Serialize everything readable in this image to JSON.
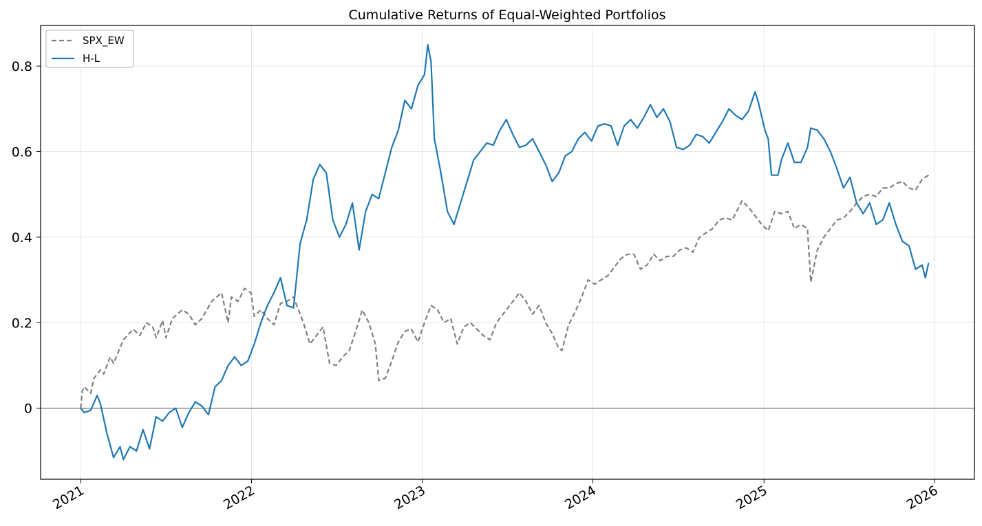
{
  "chart_data": {
    "type": "line",
    "title": "Cumulative Returns of Equal-Weighted Portfolios",
    "xlabel": "",
    "ylabel": "",
    "xlim": [
      "2020-10-07",
      "2026-03-27"
    ],
    "ylim": [
      -0.166,
      0.895
    ],
    "x_ticks": [
      "2021",
      "2022",
      "2023",
      "2024",
      "2025",
      "2026"
    ],
    "y_ticks": [
      0,
      0.2,
      0.4,
      0.6,
      0.8
    ],
    "y_tick_labels": [
      "0",
      "0.2",
      "0.4",
      "0.6",
      "0.8"
    ],
    "grid": true,
    "zero_line": true,
    "legend_position": "top-left",
    "series": [
      {
        "name": "SPX_EW",
        "style": "dashed",
        "color": "#808080",
        "points": [
          [
            "2021-01-01",
            0.0
          ],
          [
            "2021-01-04",
            0.04
          ],
          [
            "2021-01-08",
            0.05
          ],
          [
            "2021-01-22",
            0.035
          ],
          [
            "2021-01-29",
            0.07
          ],
          [
            "2021-02-12",
            0.09
          ],
          [
            "2021-02-19",
            0.08
          ],
          [
            "2021-03-05",
            0.12
          ],
          [
            "2021-03-12",
            0.105
          ],
          [
            "2021-04-02",
            0.16
          ],
          [
            "2021-04-23",
            0.185
          ],
          [
            "2021-05-07",
            0.17
          ],
          [
            "2021-05-21",
            0.2
          ],
          [
            "2021-06-04",
            0.19
          ],
          [
            "2021-06-11",
            0.165
          ],
          [
            "2021-06-25",
            0.205
          ],
          [
            "2021-07-02",
            0.165
          ],
          [
            "2021-07-16",
            0.21
          ],
          [
            "2021-08-06",
            0.23
          ],
          [
            "2021-08-20",
            0.22
          ],
          [
            "2021-09-03",
            0.195
          ],
          [
            "2021-09-17",
            0.21
          ],
          [
            "2021-10-08",
            0.25
          ],
          [
            "2021-10-29",
            0.27
          ],
          [
            "2021-11-12",
            0.2
          ],
          [
            "2021-11-19",
            0.26
          ],
          [
            "2021-12-03",
            0.25
          ],
          [
            "2021-12-17",
            0.28
          ],
          [
            "2021-12-31",
            0.27
          ],
          [
            "2022-01-07",
            0.215
          ],
          [
            "2022-01-21",
            0.23
          ],
          [
            "2022-02-04",
            0.21
          ],
          [
            "2022-02-18",
            0.195
          ],
          [
            "2022-03-04",
            0.245
          ],
          [
            "2022-03-18",
            0.25
          ],
          [
            "2022-04-01",
            0.26
          ],
          [
            "2022-04-22",
            0.2
          ],
          [
            "2022-05-06",
            0.15
          ],
          [
            "2022-05-20",
            0.17
          ],
          [
            "2022-06-03",
            0.19
          ],
          [
            "2022-06-17",
            0.105
          ],
          [
            "2022-07-01",
            0.1
          ],
          [
            "2022-07-15",
            0.12
          ],
          [
            "2022-07-29",
            0.135
          ],
          [
            "2022-08-12",
            0.18
          ],
          [
            "2022-08-26",
            0.23
          ],
          [
            "2022-09-09",
            0.2
          ],
          [
            "2022-09-23",
            0.15
          ],
          [
            "2022-09-30",
            0.065
          ],
          [
            "2022-10-14",
            0.07
          ],
          [
            "2022-10-28",
            0.11
          ],
          [
            "2022-11-11",
            0.155
          ],
          [
            "2022-11-25",
            0.18
          ],
          [
            "2022-12-09",
            0.185
          ],
          [
            "2022-12-23",
            0.155
          ],
          [
            "2023-01-06",
            0.2
          ],
          [
            "2023-01-20",
            0.24
          ],
          [
            "2023-02-03",
            0.23
          ],
          [
            "2023-02-17",
            0.2
          ],
          [
            "2023-03-03",
            0.21
          ],
          [
            "2023-03-17",
            0.15
          ],
          [
            "2023-03-31",
            0.19
          ],
          [
            "2023-04-14",
            0.2
          ],
          [
            "2023-04-28",
            0.185
          ],
          [
            "2023-05-12",
            0.17
          ],
          [
            "2023-05-26",
            0.16
          ],
          [
            "2023-06-09",
            0.2
          ],
          [
            "2023-06-23",
            0.22
          ],
          [
            "2023-07-07",
            0.24
          ],
          [
            "2023-07-28",
            0.27
          ],
          [
            "2023-08-11",
            0.25
          ],
          [
            "2023-08-25",
            0.22
          ],
          [
            "2023-09-08",
            0.24
          ],
          [
            "2023-09-22",
            0.2
          ],
          [
            "2023-10-06",
            0.175
          ],
          [
            "2023-10-20",
            0.14
          ],
          [
            "2023-10-27",
            0.135
          ],
          [
            "2023-11-10",
            0.195
          ],
          [
            "2023-11-24",
            0.225
          ],
          [
            "2023-12-08",
            0.26
          ],
          [
            "2023-12-22",
            0.3
          ],
          [
            "2024-01-05",
            0.29
          ],
          [
            "2024-01-19",
            0.3
          ],
          [
            "2024-02-02",
            0.31
          ],
          [
            "2024-02-16",
            0.33
          ],
          [
            "2024-03-01",
            0.35
          ],
          [
            "2024-03-15",
            0.36
          ],
          [
            "2024-03-29",
            0.36
          ],
          [
            "2024-04-12",
            0.325
          ],
          [
            "2024-04-26",
            0.335
          ],
          [
            "2024-05-10",
            0.36
          ],
          [
            "2024-05-24",
            0.345
          ],
          [
            "2024-06-07",
            0.355
          ],
          [
            "2024-06-21",
            0.355
          ],
          [
            "2024-07-05",
            0.37
          ],
          [
            "2024-07-19",
            0.375
          ],
          [
            "2024-08-02",
            0.365
          ],
          [
            "2024-08-16",
            0.4
          ],
          [
            "2024-08-30",
            0.41
          ],
          [
            "2024-09-13",
            0.42
          ],
          [
            "2024-09-27",
            0.44
          ],
          [
            "2024-10-11",
            0.445
          ],
          [
            "2024-10-25",
            0.44
          ],
          [
            "2024-11-08",
            0.47
          ],
          [
            "2024-11-15",
            0.485
          ],
          [
            "2024-11-29",
            0.47
          ],
          [
            "2024-12-13",
            0.45
          ],
          [
            "2024-12-27",
            0.43
          ],
          [
            "2025-01-10",
            0.415
          ],
          [
            "2025-01-24",
            0.46
          ],
          [
            "2025-02-07",
            0.455
          ],
          [
            "2025-02-21",
            0.46
          ],
          [
            "2025-03-07",
            0.42
          ],
          [
            "2025-03-21",
            0.43
          ],
          [
            "2025-04-04",
            0.42
          ],
          [
            "2025-04-11",
            0.295
          ],
          [
            "2025-04-25",
            0.37
          ],
          [
            "2025-05-09",
            0.4
          ],
          [
            "2025-05-23",
            0.42
          ],
          [
            "2025-06-06",
            0.44
          ],
          [
            "2025-06-20",
            0.445
          ],
          [
            "2025-07-04",
            0.46
          ],
          [
            "2025-07-18",
            0.48
          ],
          [
            "2025-08-01",
            0.495
          ],
          [
            "2025-08-15",
            0.5
          ],
          [
            "2025-08-29",
            0.495
          ],
          [
            "2025-09-12",
            0.515
          ],
          [
            "2025-09-26",
            0.515
          ],
          [
            "2025-10-10",
            0.525
          ],
          [
            "2025-10-24",
            0.53
          ],
          [
            "2025-11-07",
            0.515
          ],
          [
            "2025-11-21",
            0.51
          ],
          [
            "2025-12-05",
            0.535
          ],
          [
            "2025-12-19",
            0.545
          ]
        ]
      },
      {
        "name": "H-L",
        "style": "solid",
        "color": "#1f77b4",
        "points": [
          [
            "2021-01-01",
            0.0
          ],
          [
            "2021-01-08",
            -0.01
          ],
          [
            "2021-01-22",
            -0.005
          ],
          [
            "2021-02-05",
            0.03
          ],
          [
            "2021-02-12",
            0.01
          ],
          [
            "2021-02-26",
            -0.06
          ],
          [
            "2021-03-12",
            -0.115
          ],
          [
            "2021-03-26",
            -0.09
          ],
          [
            "2021-04-02",
            -0.12
          ],
          [
            "2021-04-16",
            -0.09
          ],
          [
            "2021-04-30",
            -0.1
          ],
          [
            "2021-05-14",
            -0.05
          ],
          [
            "2021-05-28",
            -0.095
          ],
          [
            "2021-06-11",
            -0.02
          ],
          [
            "2021-06-25",
            -0.03
          ],
          [
            "2021-07-09",
            -0.01
          ],
          [
            "2021-07-23",
            0.0
          ],
          [
            "2021-08-06",
            -0.045
          ],
          [
            "2021-08-20",
            -0.01
          ],
          [
            "2021-09-03",
            0.015
          ],
          [
            "2021-09-17",
            0.005
          ],
          [
            "2021-10-01",
            -0.015
          ],
          [
            "2021-10-15",
            0.05
          ],
          [
            "2021-10-29",
            0.065
          ],
          [
            "2021-11-12",
            0.1
          ],
          [
            "2021-11-26",
            0.12
          ],
          [
            "2021-12-10",
            0.1
          ],
          [
            "2021-12-24",
            0.11
          ],
          [
            "2022-01-07",
            0.15
          ],
          [
            "2022-01-21",
            0.2
          ],
          [
            "2022-02-04",
            0.24
          ],
          [
            "2022-02-18",
            0.27
          ],
          [
            "2022-03-04",
            0.305
          ],
          [
            "2022-03-18",
            0.24
          ],
          [
            "2022-04-01",
            0.235
          ],
          [
            "2022-04-15",
            0.385
          ],
          [
            "2022-04-29",
            0.44
          ],
          [
            "2022-05-13",
            0.535
          ],
          [
            "2022-05-27",
            0.57
          ],
          [
            "2022-06-10",
            0.55
          ],
          [
            "2022-06-24",
            0.44
          ],
          [
            "2022-07-08",
            0.4
          ],
          [
            "2022-07-22",
            0.43
          ],
          [
            "2022-08-05",
            0.48
          ],
          [
            "2022-08-19",
            0.37
          ],
          [
            "2022-09-02",
            0.46
          ],
          [
            "2022-09-16",
            0.5
          ],
          [
            "2022-09-30",
            0.49
          ],
          [
            "2022-10-14",
            0.55
          ],
          [
            "2022-10-28",
            0.61
          ],
          [
            "2022-11-11",
            0.65
          ],
          [
            "2022-11-25",
            0.72
          ],
          [
            "2022-12-09",
            0.7
          ],
          [
            "2022-12-23",
            0.755
          ],
          [
            "2023-01-06",
            0.78
          ],
          [
            "2023-01-13",
            0.85
          ],
          [
            "2023-01-20",
            0.81
          ],
          [
            "2023-01-27",
            0.63
          ],
          [
            "2023-02-10",
            0.55
          ],
          [
            "2023-02-24",
            0.46
          ],
          [
            "2023-03-10",
            0.43
          ],
          [
            "2023-03-24",
            0.48
          ],
          [
            "2023-04-07",
            0.53
          ],
          [
            "2023-04-21",
            0.58
          ],
          [
            "2023-05-05",
            0.6
          ],
          [
            "2023-05-19",
            0.62
          ],
          [
            "2023-06-02",
            0.615
          ],
          [
            "2023-06-16",
            0.65
          ],
          [
            "2023-06-30",
            0.675
          ],
          [
            "2023-07-14",
            0.64
          ],
          [
            "2023-07-28",
            0.61
          ],
          [
            "2023-08-11",
            0.615
          ],
          [
            "2023-08-25",
            0.63
          ],
          [
            "2023-09-08",
            0.6
          ],
          [
            "2023-09-22",
            0.57
          ],
          [
            "2023-10-06",
            0.53
          ],
          [
            "2023-10-20",
            0.55
          ],
          [
            "2023-11-03",
            0.59
          ],
          [
            "2023-11-17",
            0.6
          ],
          [
            "2023-12-01",
            0.63
          ],
          [
            "2023-12-15",
            0.645
          ],
          [
            "2023-12-29",
            0.625
          ],
          [
            "2024-01-12",
            0.66
          ],
          [
            "2024-01-26",
            0.665
          ],
          [
            "2024-02-09",
            0.66
          ],
          [
            "2024-02-23",
            0.615
          ],
          [
            "2024-03-08",
            0.66
          ],
          [
            "2024-03-22",
            0.675
          ],
          [
            "2024-04-05",
            0.655
          ],
          [
            "2024-04-19",
            0.68
          ],
          [
            "2024-05-03",
            0.71
          ],
          [
            "2024-05-17",
            0.68
          ],
          [
            "2024-05-31",
            0.7
          ],
          [
            "2024-06-14",
            0.67
          ],
          [
            "2024-06-28",
            0.61
          ],
          [
            "2024-07-12",
            0.605
          ],
          [
            "2024-07-26",
            0.615
          ],
          [
            "2024-08-09",
            0.64
          ],
          [
            "2024-08-23",
            0.635
          ],
          [
            "2024-09-06",
            0.62
          ],
          [
            "2024-09-20",
            0.645
          ],
          [
            "2024-10-04",
            0.67
          ],
          [
            "2024-10-18",
            0.7
          ],
          [
            "2024-11-01",
            0.685
          ],
          [
            "2024-11-15",
            0.675
          ],
          [
            "2024-11-29",
            0.695
          ],
          [
            "2024-12-13",
            0.74
          ],
          [
            "2024-12-20",
            0.715
          ],
          [
            "2025-01-03",
            0.65
          ],
          [
            "2025-01-10",
            0.63
          ],
          [
            "2025-01-17",
            0.545
          ],
          [
            "2025-01-31",
            0.545
          ],
          [
            "2025-02-07",
            0.58
          ],
          [
            "2025-02-21",
            0.62
          ],
          [
            "2025-03-07",
            0.575
          ],
          [
            "2025-03-21",
            0.575
          ],
          [
            "2025-04-04",
            0.61
          ],
          [
            "2025-04-11",
            0.655
          ],
          [
            "2025-04-25",
            0.65
          ],
          [
            "2025-05-09",
            0.63
          ],
          [
            "2025-05-23",
            0.6
          ],
          [
            "2025-06-06",
            0.56
          ],
          [
            "2025-06-20",
            0.515
          ],
          [
            "2025-07-04",
            0.54
          ],
          [
            "2025-07-18",
            0.48
          ],
          [
            "2025-08-01",
            0.455
          ],
          [
            "2025-08-15",
            0.48
          ],
          [
            "2025-08-29",
            0.43
          ],
          [
            "2025-09-12",
            0.44
          ],
          [
            "2025-09-26",
            0.48
          ],
          [
            "2025-10-10",
            0.43
          ],
          [
            "2025-10-24",
            0.39
          ],
          [
            "2025-11-07",
            0.38
          ],
          [
            "2025-11-21",
            0.325
          ],
          [
            "2025-12-05",
            0.335
          ],
          [
            "2025-12-12",
            0.305
          ],
          [
            "2025-12-19",
            0.34
          ]
        ]
      }
    ]
  }
}
